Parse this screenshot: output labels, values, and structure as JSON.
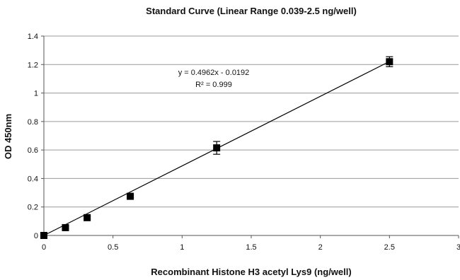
{
  "chart_data": {
    "type": "scatter",
    "title": "Standard Curve (Linear Range 0.039-2.5 ng/well)",
    "xlabel": "Recombinant Histone H3 acetyl Lys9 (ng/well)",
    "ylabel": "OD 450nm",
    "xlim": [
      0,
      3
    ],
    "ylim": [
      0,
      1.4
    ],
    "xticks": [
      "0",
      "0.5",
      "1",
      "1.5",
      "2",
      "2.5",
      "3"
    ],
    "yticks": [
      "0",
      "0.2",
      "0.4",
      "0.6",
      "0.8",
      "1",
      "1.2",
      "1.4"
    ],
    "grid": "horizontal",
    "points": [
      {
        "x": 0,
        "y": 0,
        "err": 0.005
      },
      {
        "x": 0.156,
        "y": 0.055,
        "err": 0.01
      },
      {
        "x": 0.313,
        "y": 0.125,
        "err": 0.01
      },
      {
        "x": 0.625,
        "y": 0.275,
        "err": 0.01
      },
      {
        "x": 1.25,
        "y": 0.615,
        "err": 0.045
      },
      {
        "x": 2.5,
        "y": 1.22,
        "err": 0.035
      }
    ],
    "trendline": {
      "slope": 0.4962,
      "intercept": -0.0192
    },
    "annotation": {
      "equation": "y = 0.4962x - 0.0192",
      "r_squared": "R² = 0.999"
    }
  }
}
